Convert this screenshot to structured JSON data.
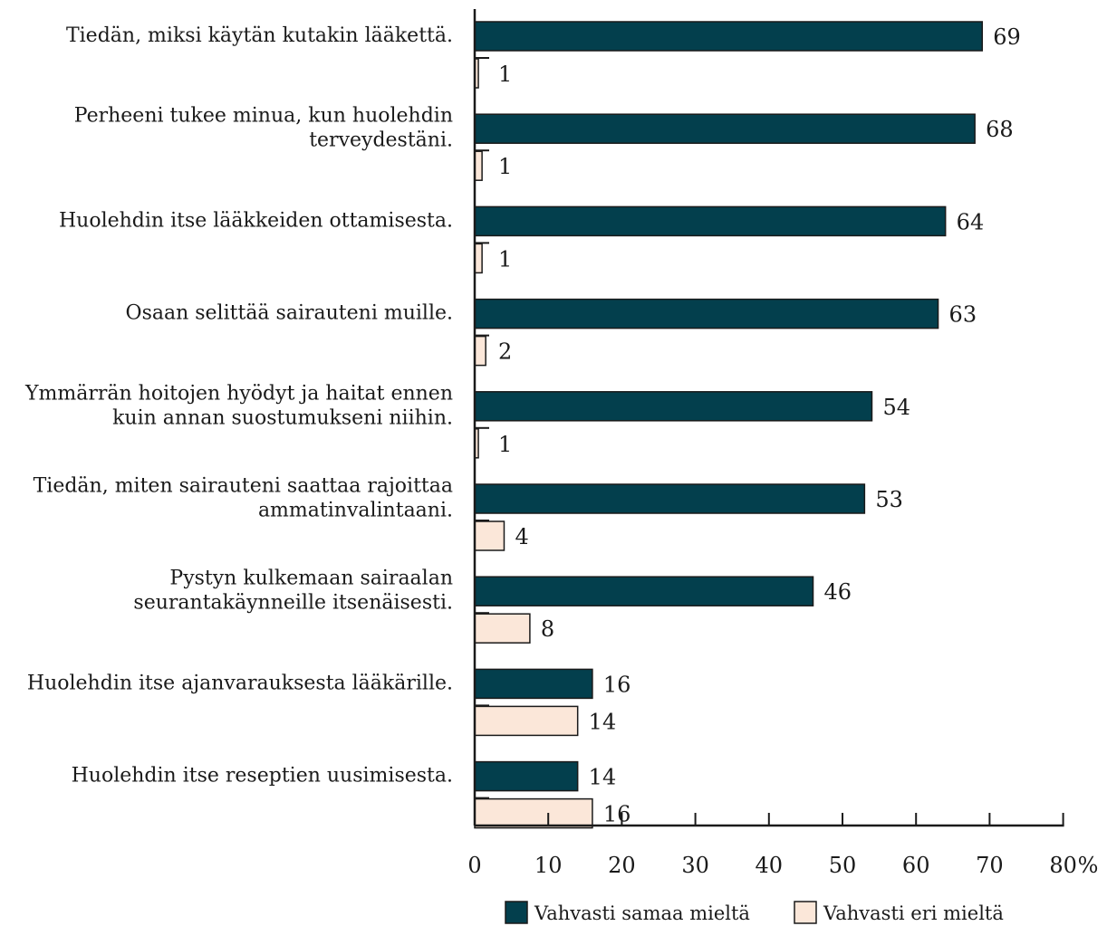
{
  "chart_data": {
    "type": "bar",
    "orientation": "horizontal",
    "categories": [
      [
        "Tiedän, miksi käytän kutakin lääkettä."
      ],
      [
        "Perheeni tukee minua, kun huolehdin",
        "terveydestäni."
      ],
      [
        "Huolehdin itse lääkkeiden ottamisesta."
      ],
      [
        "Osaan selittää sairauteni muille."
      ],
      [
        "Ymmärrän hoitojen hyödyt ja haitat ennen",
        "kuin annan suostumukseni niihin."
      ],
      [
        "Tiedän, miten sairauteni saattaa rajoittaa",
        "ammatinvalintaani."
      ],
      [
        "Pystyn kulkemaan sairaalan",
        "seurantakäynneille itsenäisesti."
      ],
      [
        "Huolehdin itse ajanvarauksesta lääkärille."
      ],
      [
        "Huolehdin itse reseptien uusimisesta."
      ]
    ],
    "series": [
      {
        "name": "Vahvasti samaa mieltä",
        "color": "#033f4d",
        "values": [
          69,
          68,
          64,
          63,
          54,
          53,
          46,
          16,
          14
        ],
        "value_labels": [
          "69",
          "68",
          "64",
          "63",
          "54",
          "53",
          "46",
          "16",
          "14"
        ]
      },
      {
        "name": "Vahvasti eri mieltä",
        "color": "#fbe7d9",
        "values": [
          0.5,
          1,
          1,
          1.5,
          0.5,
          4,
          7.5,
          14,
          16
        ],
        "value_labels": [
          "1",
          "1",
          "1",
          "2",
          "1",
          "4",
          "8",
          "14",
          "16"
        ]
      }
    ],
    "xlim": [
      0,
      80
    ],
    "x_ticks": [
      "0",
      "10",
      "20",
      "30",
      "40",
      "50",
      "60",
      "70",
      "80"
    ],
    "x_unit": "%",
    "grid": false,
    "legend_position": "bottom"
  }
}
